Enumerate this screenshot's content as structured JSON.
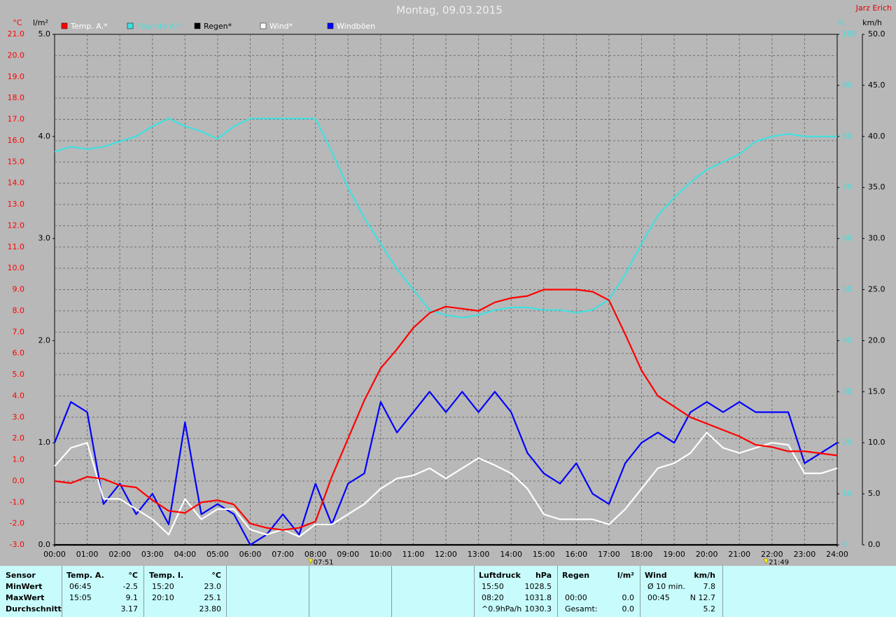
{
  "chart_data": {
    "type": "line",
    "title": "Montag, 09.03.2015",
    "author": "Jarz Erich",
    "axis_labels": {
      "y": "°C",
      "y2": "l/m²",
      "y3": "%",
      "y4": "km/h"
    },
    "x": [
      0,
      0.5,
      1,
      1.5,
      2,
      2.5,
      3,
      3.5,
      4,
      4.5,
      5,
      5.5,
      6,
      6.5,
      7,
      7.5,
      8,
      8.5,
      9,
      9.5,
      10,
      10.5,
      11,
      11.5,
      12,
      12.5,
      13,
      13.5,
      14,
      14.5,
      15,
      15.5,
      16,
      16.5,
      17,
      17.5,
      18,
      18.5,
      19,
      19.5,
      20,
      20.5,
      21,
      21.5,
      22,
      22.5,
      23,
      23.5,
      24
    ],
    "xlim": [
      0,
      24
    ],
    "xticks": [
      {
        "value": 0,
        "label": "00:00"
      },
      {
        "value": 1,
        "label": "01:00"
      },
      {
        "value": 2,
        "label": "02:00"
      },
      {
        "value": 3,
        "label": "03:00"
      },
      {
        "value": 4,
        "label": "04:00"
      },
      {
        "value": 5,
        "label": "05:00"
      },
      {
        "value": 6,
        "label": "06:00"
      },
      {
        "value": 7,
        "label": "07:00"
      },
      {
        "value": 8,
        "label": "08:00"
      },
      {
        "value": 9,
        "label": "09:00"
      },
      {
        "value": 10,
        "label": "10:00"
      },
      {
        "value": 11,
        "label": "11:00"
      },
      {
        "value": 12,
        "label": "12:00"
      },
      {
        "value": 13,
        "label": "13:00"
      },
      {
        "value": 14,
        "label": "14:00"
      },
      {
        "value": 15,
        "label": "15:00"
      },
      {
        "value": 16,
        "label": "16:00"
      },
      {
        "value": 17,
        "label": "17:00"
      },
      {
        "value": 18,
        "label": "18:00"
      },
      {
        "value": 19,
        "label": "19:00"
      },
      {
        "value": 20,
        "label": "20:00"
      },
      {
        "value": 21,
        "label": "21:00"
      },
      {
        "value": 22,
        "label": "22:00"
      },
      {
        "value": 23,
        "label": "23:00"
      },
      {
        "value": 24,
        "label": "24:00"
      }
    ],
    "ylim": [
      -3,
      21
    ],
    "yticks": [
      {
        "value": -3,
        "label": "-3.0"
      },
      {
        "value": -2,
        "label": "-2.0"
      },
      {
        "value": -1,
        "label": "-1.0"
      },
      {
        "value": 0,
        "label": "0.0"
      },
      {
        "value": 1,
        "label": "1.0"
      },
      {
        "value": 2,
        "label": "2.0"
      },
      {
        "value": 3,
        "label": "3.0"
      },
      {
        "value": 4,
        "label": "4.0"
      },
      {
        "value": 5,
        "label": "5.0"
      },
      {
        "value": 6,
        "label": "6.0"
      },
      {
        "value": 7,
        "label": "7.0"
      },
      {
        "value": 8,
        "label": "8.0"
      },
      {
        "value": 9,
        "label": "9.0"
      },
      {
        "value": 10,
        "label": "10.0"
      },
      {
        "value": 11,
        "label": "11.0"
      },
      {
        "value": 12,
        "label": "12.0"
      },
      {
        "value": 13,
        "label": "13.0"
      },
      {
        "value": 14,
        "label": "14.0"
      },
      {
        "value": 15,
        "label": "15.0"
      },
      {
        "value": 16,
        "label": "16.0"
      },
      {
        "value": 17,
        "label": "17.0"
      },
      {
        "value": 18,
        "label": "18.0"
      },
      {
        "value": 19,
        "label": "19.0"
      },
      {
        "value": 20,
        "label": "20.0"
      },
      {
        "value": 21,
        "label": "21.0"
      }
    ],
    "y2lim": [
      0,
      5
    ],
    "y2ticks": [
      {
        "value": 0,
        "label": "0.0"
      },
      {
        "value": 1,
        "label": "1.0"
      },
      {
        "value": 2,
        "label": "2.0"
      },
      {
        "value": 3,
        "label": "3.0"
      },
      {
        "value": 4,
        "label": "4.0"
      },
      {
        "value": 5,
        "label": "5.0"
      }
    ],
    "y3lim": [
      0,
      100
    ],
    "y3ticks": [
      0,
      10,
      20,
      30,
      40,
      50,
      60,
      70,
      80,
      90,
      100
    ],
    "y4lim": [
      0,
      50
    ],
    "y4ticks": [
      {
        "value": 0,
        "label": "0.0"
      },
      {
        "value": 5,
        "label": "5.0"
      },
      {
        "value": 10,
        "label": "10.0"
      },
      {
        "value": 15,
        "label": "15.0"
      },
      {
        "value": 20,
        "label": "20.0"
      },
      {
        "value": 25,
        "label": "25.0"
      },
      {
        "value": 30,
        "label": "30.0"
      },
      {
        "value": 35,
        "label": "35.0"
      },
      {
        "value": 40,
        "label": "40.0"
      },
      {
        "value": 45,
        "label": "45.0"
      },
      {
        "value": 50,
        "label": "50.0"
      }
    ],
    "grid": true,
    "series": [
      {
        "name": "Temp. A.*",
        "color": "#ff0000",
        "axis": "y",
        "values": [
          0.0,
          -0.1,
          0.2,
          0.1,
          -0.2,
          -0.3,
          -0.9,
          -1.4,
          -1.5,
          -1.0,
          -0.9,
          -1.1,
          -2.0,
          -2.2,
          -2.3,
          -2.2,
          -1.9,
          0.2,
          2.0,
          3.8,
          5.3,
          6.2,
          7.2,
          7.9,
          8.2,
          8.1,
          8.0,
          8.4,
          8.6,
          8.7,
          9.0,
          9.0,
          9.0,
          8.9,
          8.5,
          6.9,
          5.2,
          4.0,
          3.5,
          3.0,
          2.7,
          2.4,
          2.1,
          1.7,
          1.6,
          1.4,
          1.4,
          1.3,
          1.2
        ]
      },
      {
        "name": "Feuchte A.*",
        "color": "#40e0e0",
        "axis": "y3",
        "values": [
          77,
          78,
          77.5,
          78,
          79,
          80,
          82,
          83.5,
          82,
          81,
          79.5,
          82,
          83.5,
          83.5,
          83.5,
          83.5,
          83.5,
          77,
          70,
          64,
          59,
          54,
          50,
          46,
          45,
          44.5,
          45,
          46,
          46.5,
          46.5,
          46,
          46,
          45.5,
          46,
          48,
          53,
          59,
          64.5,
          68,
          71,
          73.5,
          75,
          76.5,
          79,
          80,
          80.5,
          80,
          80,
          80
        ]
      },
      {
        "name": "Regen*",
        "color": "#000000",
        "axis": "y2",
        "values": [
          0,
          0,
          0,
          0,
          0,
          0,
          0,
          0,
          0,
          0,
          0,
          0,
          0,
          0,
          0,
          0,
          0,
          0,
          0,
          0,
          0,
          0,
          0,
          0,
          0,
          0,
          0,
          0,
          0,
          0,
          0,
          0,
          0,
          0,
          0,
          0,
          0,
          0,
          0,
          0,
          0,
          0,
          0,
          0,
          0,
          0,
          0,
          0,
          0
        ]
      },
      {
        "name": "Wind*",
        "color": "#ffffff",
        "axis": "y4",
        "values": [
          7.7,
          9.5,
          10,
          4.5,
          4.5,
          3.5,
          2.5,
          1.0,
          4.5,
          2.5,
          3.5,
          3.5,
          1.5,
          1.0,
          1.5,
          0.8,
          2.0,
          2.0,
          3.0,
          4.0,
          5.5,
          6.5,
          6.8,
          7.5,
          6.5,
          7.5,
          8.5,
          7.8,
          7.0,
          5.5,
          3.0,
          2.5,
          2.5,
          2.5,
          2.0,
          3.5,
          5.5,
          7.5,
          8.0,
          9.0,
          11,
          9.5,
          9.0,
          9.5,
          10,
          9.8,
          7.0,
          7.0,
          7.5
        ]
      },
      {
        "name": "Windböen",
        "color": "#0000ff",
        "axis": "y4",
        "values": [
          10,
          14,
          13,
          4,
          6,
          3,
          5,
          2,
          12,
          3,
          4,
          3,
          0,
          1,
          3,
          1,
          6,
          2,
          6,
          7,
          14,
          11,
          13,
          15,
          13,
          15,
          13,
          15,
          13,
          9,
          7,
          6,
          8,
          5,
          4,
          8,
          10,
          11,
          10,
          13,
          14,
          13,
          14,
          13,
          13,
          13,
          8,
          9,
          10
        ]
      }
    ],
    "annotations": [
      {
        "text": "07:51",
        "x": 7.85
      },
      {
        "text": "21:49",
        "x": 21.8167
      }
    ]
  },
  "footer": {
    "row_labels": [
      "Sensor",
      "MinWert",
      "MaxWert",
      "Durchschnitt"
    ],
    "sections": [
      {
        "name": "Temp. A.",
        "unit": "°C",
        "rows": [
          [
            "06:45",
            "-2.5"
          ],
          [
            "15:05",
            "9.1"
          ],
          [
            null,
            "3.17"
          ]
        ]
      },
      {
        "name": "Temp. I.",
        "unit": "°C",
        "rows": [
          [
            "15:20",
            "23.0"
          ],
          [
            "20:10",
            "25.1"
          ],
          [
            null,
            "23.80"
          ]
        ]
      },
      {
        "name": "Luftdruck",
        "unit": "hPa",
        "rows": [
          [
            "15:50",
            "1028.5"
          ],
          [
            "08:20",
            "1031.8"
          ],
          [
            "^0.9hPa/h",
            "1030.3"
          ]
        ]
      },
      {
        "name": "Regen",
        "unit": "l/m²",
        "rows": [
          [
            null,
            null
          ],
          [
            "00:00",
            "0.0"
          ],
          [
            "Gesamt:",
            "0.0"
          ]
        ]
      },
      {
        "name": "Wind",
        "unit": "km/h",
        "rows": [
          [
            "Ø 10 min.",
            "7.8"
          ],
          [
            "00:45",
            "N 12.7"
          ],
          [
            null,
            "5.2"
          ]
        ]
      }
    ]
  }
}
